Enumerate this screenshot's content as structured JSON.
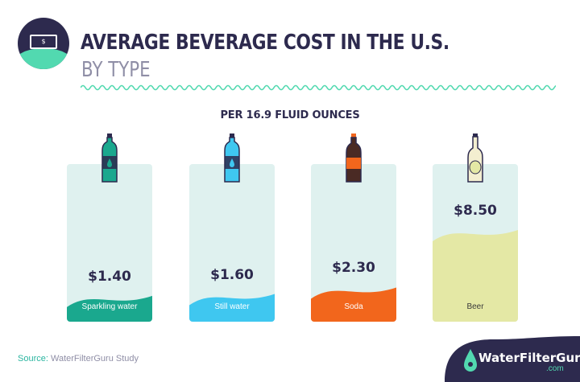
{
  "header": {
    "title": "AVERAGE BEVERAGE COST IN THE U.S.",
    "subtitle": "BY TYPE",
    "badge_icon": "dollar-bill-icon",
    "badge_symbol": "$"
  },
  "chart_data": {
    "type": "bar",
    "title": "AVERAGE BEVERAGE COST IN THE U.S.",
    "subtitle": "BY TYPE",
    "unit_note": "PER 16.9 FLUID OUNCES",
    "categories": [
      "Sparkling water",
      "Still water",
      "Soda",
      "Beer"
    ],
    "values": [
      1.4,
      1.6,
      2.3,
      8.5
    ],
    "value_labels": [
      "$1.40",
      "$1.60",
      "$2.30",
      "$8.50"
    ],
    "colors": [
      "#1aa88e",
      "#3fc7f0",
      "#f2661c",
      "#e4e8a5"
    ],
    "label_colors": [
      "#ffffff",
      "#ffffff",
      "#ffffff",
      "#3a3a3a"
    ],
    "icons": [
      "sparkling-water-bottle-icon",
      "still-water-bottle-icon",
      "soda-bottle-icon",
      "beer-bottle-icon"
    ],
    "ylim": [
      0,
      8.5
    ],
    "grid": false
  },
  "footer": {
    "source_label": "Source:",
    "source_text": "WaterFilterGuru Study",
    "brand": "WaterFilterGuru",
    "brand_suffix": ".com"
  },
  "colors": {
    "navy": "#2d2a4e",
    "mint": "#52d9b0",
    "card_bg": "#dff1ef",
    "muted": "#8f8ea6"
  }
}
